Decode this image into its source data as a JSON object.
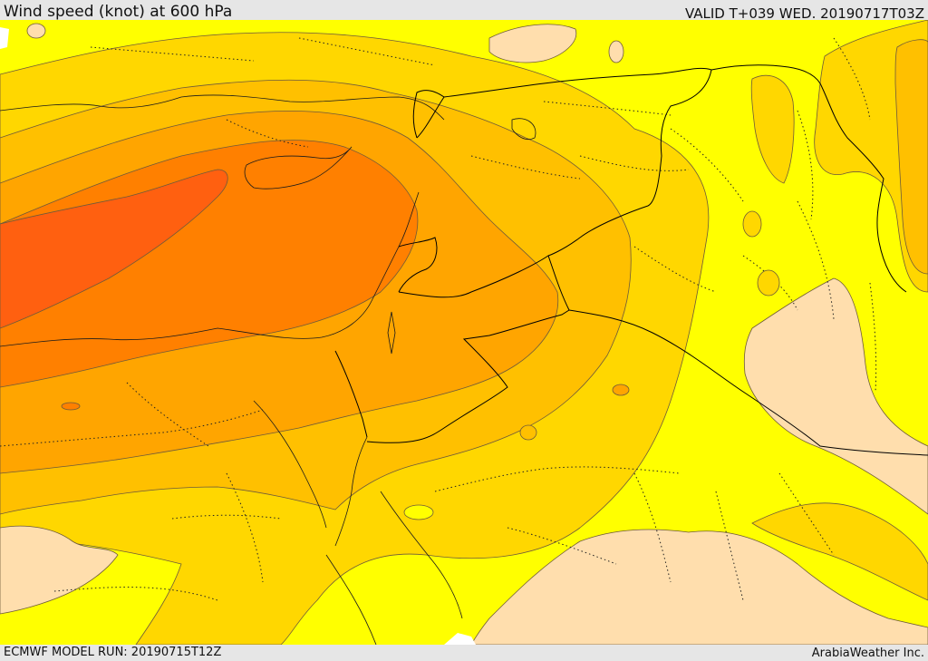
{
  "header": {
    "title": "Wind speed (knot) at 600 hPa",
    "valid": "VALID T+039 WED. 20190717T03Z"
  },
  "footer": {
    "model_run": "ECMWF MODEL RUN: 20190715T12Z",
    "credit": "ArabiaWeather Inc."
  },
  "map": {
    "colors": {
      "lightest": "#ffdead",
      "yellow": "#ffff00",
      "gold": "#ffd700",
      "amber": "#ffc000",
      "orange_light": "#ffa500",
      "orange": "#ff8000",
      "orange_dark": "#ff6010",
      "land_no_data": "#ffffff"
    }
  }
}
